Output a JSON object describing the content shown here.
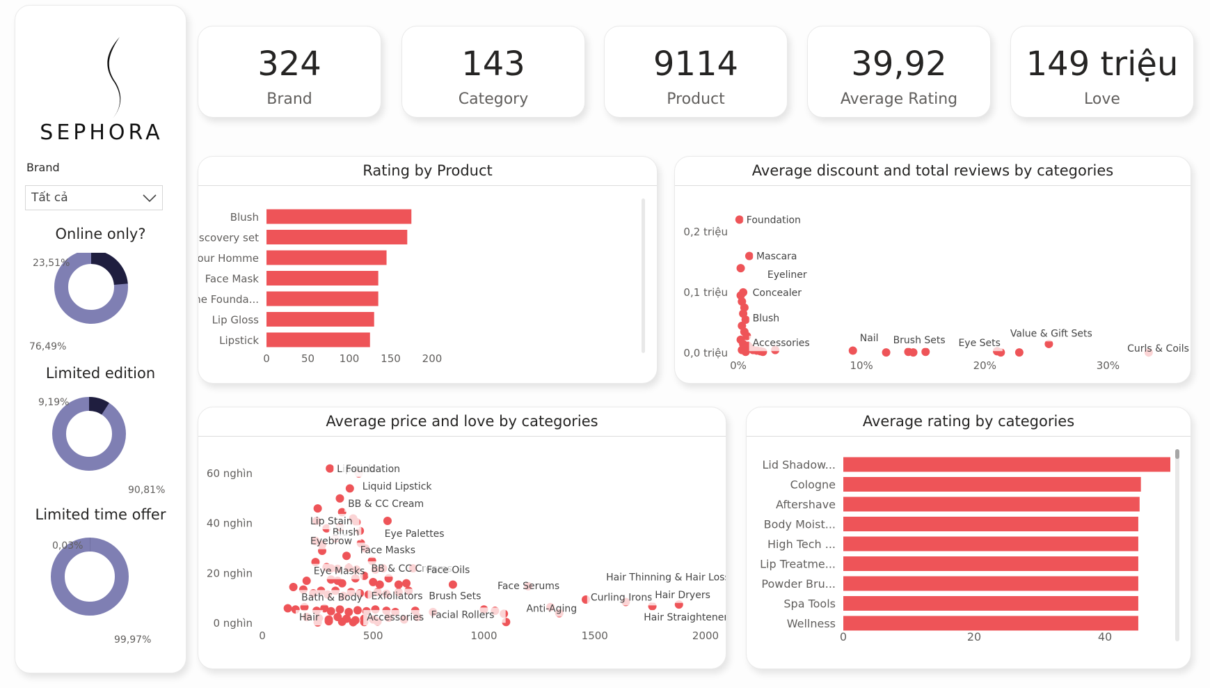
{
  "brand": {
    "name": "SEPHORA"
  },
  "kpis": [
    {
      "value": "324",
      "label": "Brand"
    },
    {
      "value": "143",
      "label": "Category"
    },
    {
      "value": "9114",
      "label": "Product"
    },
    {
      "value": "39,92",
      "label": "Average Rating"
    },
    {
      "value": "149 triệu",
      "label": "Love"
    }
  ],
  "filter": {
    "label": "Brand",
    "selected": "Tất cả"
  },
  "donuts": [
    {
      "title": "Online only?",
      "true_pct_label": "23,51%",
      "false_pct_label": "76,49%",
      "true_fraction": 0.2351,
      "colors": {
        "true": "#1f1e3f",
        "false": "#7f7fb3"
      }
    },
    {
      "title": "Limited edition",
      "true_pct_label": "9,19%",
      "false_pct_label": "90,81%",
      "true_fraction": 0.0919,
      "colors": {
        "true": "#1f1e3f",
        "false": "#7f7fb3"
      }
    },
    {
      "title": "Limited time offer",
      "true_pct_label": "0,03%",
      "false_pct_label": "99,97%",
      "true_fraction": 0.0003,
      "colors": {
        "true": "#1f1e3f",
        "false": "#7f7fb3"
      }
    }
  ],
  "colors": {
    "accent": "#ee5458",
    "donut_dark": "#1f1e3f",
    "donut_light": "#7f7fb3"
  },
  "chart_data": [
    {
      "id": "rating_by_product",
      "type": "bar",
      "orientation": "horizontal",
      "title": "Rating by Product",
      "categories": [
        "Blush",
        "Discovery set",
        "Pour Homme",
        "Face Mask",
        "The Founda...",
        "Lip Gloss",
        "Lipstick"
      ],
      "values": [
        175,
        170,
        145,
        135,
        135,
        130,
        125
      ],
      "xlim": [
        0,
        200
      ],
      "xticks": [
        "0",
        "50",
        "100",
        "150",
        "200"
      ],
      "color": "#ee5458"
    },
    {
      "id": "discount_reviews",
      "type": "scatter",
      "title": "Average discount and total reviews by categories",
      "xlim": [
        0,
        0.35
      ],
      "ylim": [
        0,
        0.24
      ],
      "xticks": [
        {
          "v": 0,
          "label": "0%"
        },
        {
          "v": 0.1,
          "label": "10%"
        },
        {
          "v": 0.2,
          "label": "20%"
        },
        {
          "v": 0.3,
          "label": "30%"
        }
      ],
      "yticks": [
        {
          "v": 0,
          "label": "0,0 triệu"
        },
        {
          "v": 0.1,
          "label": "0,1 triệu"
        },
        {
          "v": 0.2,
          "label": "0,2 triệu"
        }
      ],
      "labels": [
        {
          "text": "Foundation",
          "x": 0.001,
          "y": 0.22
        },
        {
          "text": "Mascara",
          "x": 0.009,
          "y": 0.16
        },
        {
          "text": "Eyeliner",
          "x": 0.018,
          "y": 0.13
        },
        {
          "text": "Concealer",
          "x": 0.006,
          "y": 0.1
        },
        {
          "text": "Blush",
          "x": 0.006,
          "y": 0.058
        },
        {
          "text": "Accessories",
          "x": 0.006,
          "y": 0.017
        },
        {
          "text": "Nail",
          "x": 0.093,
          "y": 0.025
        },
        {
          "text": "Brush Sets",
          "x": 0.12,
          "y": 0.022
        },
        {
          "text": "Eye Sets",
          "x": 0.173,
          "y": 0.017
        },
        {
          "text": "Value & Gift Sets",
          "x": 0.215,
          "y": 0.033
        },
        {
          "text": "Curls & Coils",
          "x": 0.31,
          "y": 0.008
        }
      ],
      "points": [
        {
          "x": 0.001,
          "y": 0.22
        },
        {
          "x": 0.009,
          "y": 0.16
        },
        {
          "x": 0.002,
          "y": 0.14
        },
        {
          "x": 0.004,
          "y": 0.1
        },
        {
          "x": 0.002,
          "y": 0.095
        },
        {
          "x": 0.003,
          "y": 0.085
        },
        {
          "x": 0.005,
          "y": 0.075
        },
        {
          "x": 0.004,
          "y": 0.065
        },
        {
          "x": 0.006,
          "y": 0.055
        },
        {
          "x": 0.003,
          "y": 0.045
        },
        {
          "x": 0.005,
          "y": 0.035
        },
        {
          "x": 0.007,
          "y": 0.028
        },
        {
          "x": 0.002,
          "y": 0.022
        },
        {
          "x": 0.004,
          "y": 0.015
        },
        {
          "x": 0.008,
          "y": 0.012
        },
        {
          "x": 0.01,
          "y": 0.008
        },
        {
          "x": 0.012,
          "y": 0.005
        },
        {
          "x": 0.015,
          "y": 0.004
        },
        {
          "x": 0.018,
          "y": 0.003
        },
        {
          "x": 0.02,
          "y": 0.002
        },
        {
          "x": 0.003,
          "y": 0.005
        },
        {
          "x": 0.006,
          "y": 0.002
        },
        {
          "x": 0.03,
          "y": 0.005
        },
        {
          "x": 0.093,
          "y": 0.004
        },
        {
          "x": 0.12,
          "y": 0.001
        },
        {
          "x": 0.138,
          "y": 0.002
        },
        {
          "x": 0.142,
          "y": 0.001
        },
        {
          "x": 0.152,
          "y": 0.002
        },
        {
          "x": 0.21,
          "y": 0.003
        },
        {
          "x": 0.213,
          "y": 0.001
        },
        {
          "x": 0.228,
          "y": 0.001
        },
        {
          "x": 0.252,
          "y": 0.015
        },
        {
          "x": 0.333,
          "y": 0.001
        }
      ],
      "color": "#ee5458"
    },
    {
      "id": "price_love",
      "type": "scatter",
      "title": "Average price and love by categories",
      "xlim": [
        0,
        2000
      ],
      "ylim": [
        0,
        65000
      ],
      "xticks": [
        {
          "v": 0,
          "label": "0"
        },
        {
          "v": 500,
          "label": "500"
        },
        {
          "v": 1000,
          "label": "1000"
        },
        {
          "v": 1500,
          "label": "1500"
        },
        {
          "v": 2000,
          "label": "2000"
        }
      ],
      "yticks": [
        {
          "v": 0,
          "label": "0 nghìn"
        },
        {
          "v": 20000,
          "label": "20 nghìn"
        },
        {
          "v": 40000,
          "label": "40 nghìn"
        },
        {
          "v": 60000,
          "label": "60 nghìn"
        }
      ],
      "labels": [
        {
          "text": "Lipstick",
          "x": 305,
          "y": 62000
        },
        {
          "text": "Foundation",
          "x": 345,
          "y": 62000
        },
        {
          "text": "Liquid Lipstick",
          "x": 420,
          "y": 55000
        },
        {
          "text": "BB & CC Cream",
          "x": 355,
          "y": 48000
        },
        {
          "text": "Lip Stain",
          "x": 185,
          "y": 41000
        },
        {
          "text": "Blush",
          "x": 285,
          "y": 36500
        },
        {
          "text": "Eye Palettes",
          "x": 520,
          "y": 36000
        },
        {
          "text": "Eyebrow",
          "x": 185,
          "y": 33000
        },
        {
          "text": "Face Masks",
          "x": 410,
          "y": 29500
        },
        {
          "text": "Eye Masks",
          "x": 200,
          "y": 21000
        },
        {
          "text": "BB & CC Creams",
          "x": 460,
          "y": 22000
        },
        {
          "text": "Face Oils",
          "x": 710,
          "y": 21500
        },
        {
          "text": "Face Serums",
          "x": 1030,
          "y": 15000
        },
        {
          "text": "Hair Thinning & Hair Loss",
          "x": 1520,
          "y": 18500
        },
        {
          "text": "Bath & Body",
          "x": 145,
          "y": 10500
        },
        {
          "text": "Exfoliators",
          "x": 460,
          "y": 11000
        },
        {
          "text": "Brush Sets",
          "x": 720,
          "y": 11000
        },
        {
          "text": "Curling Irons",
          "x": 1450,
          "y": 10500
        },
        {
          "text": "Hair Dryers",
          "x": 1740,
          "y": 11500
        },
        {
          "text": "Anti-Aging",
          "x": 1160,
          "y": 6000
        },
        {
          "text": "Hair",
          "x": 135,
          "y": 2500
        },
        {
          "text": "Accessories",
          "x": 440,
          "y": 2500
        },
        {
          "text": "Facial Rollers",
          "x": 730,
          "y": 3500
        },
        {
          "text": "Hair Straighteners & Flat Irons",
          "x": 1690,
          "y": 2500
        }
      ],
      "points": [
        {
          "x": 305,
          "y": 62000
        },
        {
          "x": 435,
          "y": 60000
        },
        {
          "x": 395,
          "y": 54000
        },
        {
          "x": 350,
          "y": 50000
        },
        {
          "x": 250,
          "y": 46000
        },
        {
          "x": 360,
          "y": 44500
        },
        {
          "x": 245,
          "y": 41000
        },
        {
          "x": 410,
          "y": 42000
        },
        {
          "x": 425,
          "y": 40500
        },
        {
          "x": 565,
          "y": 41000
        },
        {
          "x": 440,
          "y": 37000
        },
        {
          "x": 290,
          "y": 38000
        },
        {
          "x": 350,
          "y": 38500
        },
        {
          "x": 330,
          "y": 34000
        },
        {
          "x": 240,
          "y": 33000
        },
        {
          "x": 270,
          "y": 31500
        },
        {
          "x": 270,
          "y": 29000
        },
        {
          "x": 445,
          "y": 32000
        },
        {
          "x": 465,
          "y": 30000
        },
        {
          "x": 380,
          "y": 27000
        },
        {
          "x": 495,
          "y": 25000
        },
        {
          "x": 240,
          "y": 24500
        },
        {
          "x": 290,
          "y": 22500
        },
        {
          "x": 310,
          "y": 22000
        },
        {
          "x": 340,
          "y": 21800
        },
        {
          "x": 390,
          "y": 22200
        },
        {
          "x": 425,
          "y": 21500
        },
        {
          "x": 510,
          "y": 21500
        },
        {
          "x": 545,
          "y": 22000
        },
        {
          "x": 680,
          "y": 22000
        },
        {
          "x": 200,
          "y": 17000
        },
        {
          "x": 310,
          "y": 17500
        },
        {
          "x": 340,
          "y": 17000
        },
        {
          "x": 360,
          "y": 16000
        },
        {
          "x": 420,
          "y": 18000
        },
        {
          "x": 460,
          "y": 19000
        },
        {
          "x": 500,
          "y": 16500
        },
        {
          "x": 530,
          "y": 15500
        },
        {
          "x": 570,
          "y": 18000
        },
        {
          "x": 615,
          "y": 15500
        },
        {
          "x": 650,
          "y": 16000
        },
        {
          "x": 860,
          "y": 15500
        },
        {
          "x": 1200,
          "y": 14800
        },
        {
          "x": 140,
          "y": 14500
        },
        {
          "x": 185,
          "y": 13500
        },
        {
          "x": 230,
          "y": 12000
        },
        {
          "x": 265,
          "y": 13000
        },
        {
          "x": 295,
          "y": 11500
        },
        {
          "x": 330,
          "y": 13000
        },
        {
          "x": 365,
          "y": 11000
        },
        {
          "x": 400,
          "y": 12500
        },
        {
          "x": 440,
          "y": 12000
        },
        {
          "x": 480,
          "y": 11500
        },
        {
          "x": 520,
          "y": 12500
        },
        {
          "x": 560,
          "y": 11800
        },
        {
          "x": 615,
          "y": 12500
        },
        {
          "x": 660,
          "y": 13000
        },
        {
          "x": 1460,
          "y": 9500
        },
        {
          "x": 1640,
          "y": 8500
        },
        {
          "x": 1880,
          "y": 7500
        },
        {
          "x": 1760,
          "y": 6800
        },
        {
          "x": 1300,
          "y": 6500
        },
        {
          "x": 1000,
          "y": 5500
        },
        {
          "x": 1050,
          "y": 5000
        },
        {
          "x": 1090,
          "y": 3800
        },
        {
          "x": 1340,
          "y": 4000
        },
        {
          "x": 115,
          "y": 6000
        },
        {
          "x": 150,
          "y": 5500
        },
        {
          "x": 190,
          "y": 6500
        },
        {
          "x": 245,
          "y": 5000
        },
        {
          "x": 280,
          "y": 6000
        },
        {
          "x": 310,
          "y": 4800
        },
        {
          "x": 350,
          "y": 5500
        },
        {
          "x": 390,
          "y": 4500
        },
        {
          "x": 430,
          "y": 5200
        },
        {
          "x": 470,
          "y": 4800
        },
        {
          "x": 510,
          "y": 5500
        },
        {
          "x": 560,
          "y": 5000
        },
        {
          "x": 600,
          "y": 4500
        },
        {
          "x": 690,
          "y": 5000
        },
        {
          "x": 770,
          "y": 4500
        },
        {
          "x": 200,
          "y": 2500
        },
        {
          "x": 255,
          "y": 2000
        },
        {
          "x": 300,
          "y": 1500
        },
        {
          "x": 340,
          "y": 2500
        },
        {
          "x": 380,
          "y": 1800
        },
        {
          "x": 420,
          "y": 1200
        },
        {
          "x": 460,
          "y": 1800
        },
        {
          "x": 500,
          "y": 1500
        },
        {
          "x": 570,
          "y": 2200
        },
        {
          "x": 640,
          "y": 1500
        },
        {
          "x": 700,
          "y": 2500
        },
        {
          "x": 1100,
          "y": 500
        },
        {
          "x": 460,
          "y": 500
        },
        {
          "x": 250,
          "y": 300
        },
        {
          "x": 300,
          "y": 800
        },
        {
          "x": 360,
          "y": 600
        },
        {
          "x": 410,
          "y": 400
        },
        {
          "x": 520,
          "y": 700
        }
      ],
      "color": "#ee5458"
    },
    {
      "id": "avg_rating_categories",
      "type": "bar",
      "orientation": "horizontal",
      "title": "Average rating by categories",
      "categories": [
        "Lid Shadow...",
        "Cologne",
        "Aftershave",
        "Body Moist...",
        "High Tech ...",
        "Lip Treatme...",
        "Powder Bru...",
        "Spa Tools",
        "Wellness"
      ],
      "values": [
        50,
        45.5,
        45.3,
        45.1,
        45.1,
        45.1,
        45.1,
        45.1,
        45.1
      ],
      "xlim": [
        0,
        50
      ],
      "xticks": [
        "0",
        "20",
        "40"
      ],
      "color": "#ee5458"
    }
  ]
}
